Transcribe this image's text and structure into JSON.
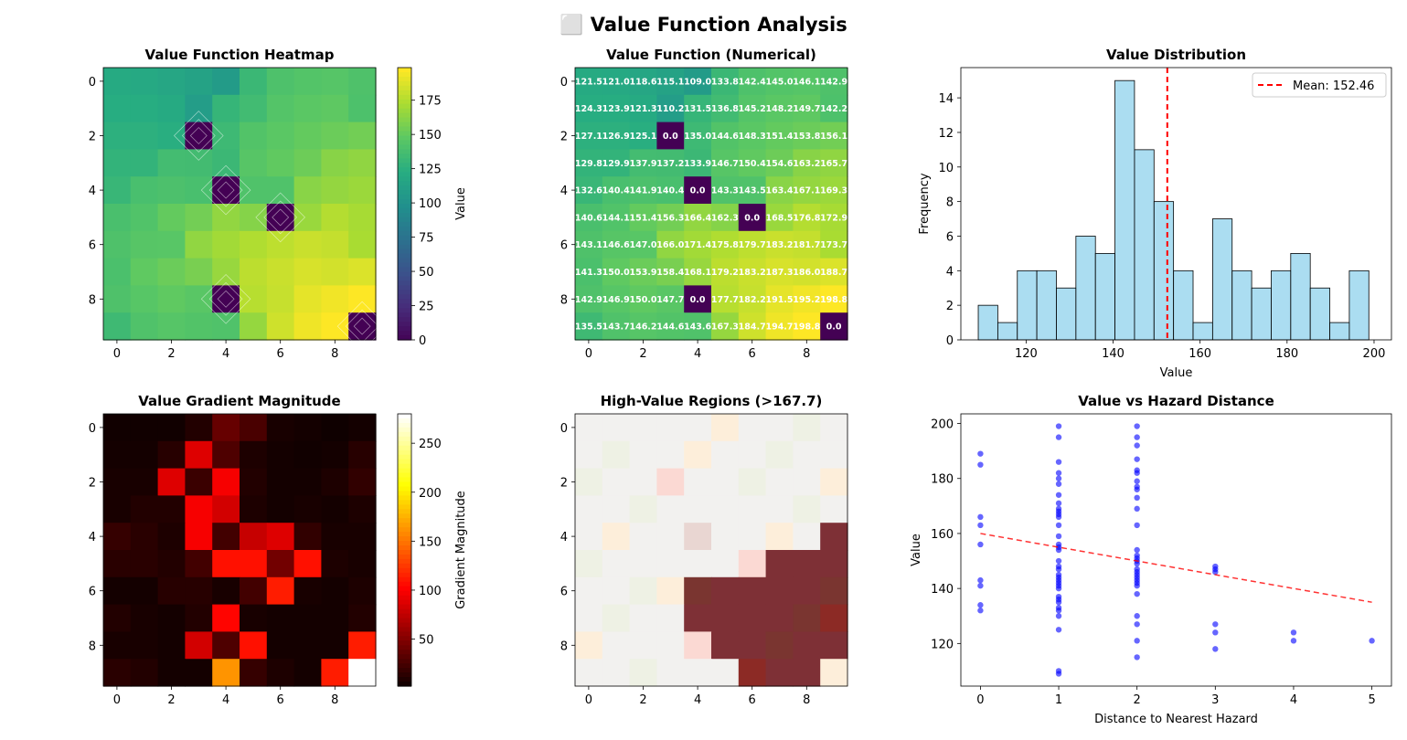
{
  "figure": {
    "suptitle": "⬜ Value Function Analysis"
  },
  "chart_data": [
    {
      "type": "heatmap",
      "title": "Value Function Heatmap",
      "colormap": "viridis",
      "x_ticks": [
        "0",
        "2",
        "4",
        "6",
        "8"
      ],
      "y_ticks": [
        "0",
        "2",
        "4",
        "6",
        "8"
      ],
      "colorbar": {
        "label": "Value",
        "ticks": [
          "0",
          "25",
          "50",
          "75",
          "100",
          "125",
          "150",
          "175"
        ],
        "range": [
          0,
          198.8
        ]
      },
      "values": [
        [
          121.5,
          121.0,
          118.6,
          115.1,
          109.0,
          133.8,
          142.4,
          145.0,
          146.1,
          142.9
        ],
        [
          124.3,
          123.9,
          121.3,
          110.2,
          131.5,
          136.8,
          145.2,
          148.2,
          149.7,
          142.2
        ],
        [
          127.1,
          126.9,
          125.1,
          0.0,
          135.0,
          144.6,
          148.3,
          151.4,
          153.8,
          156.1
        ],
        [
          129.8,
          129.9,
          137.9,
          137.2,
          133.9,
          146.7,
          150.4,
          154.6,
          163.2,
          165.7
        ],
        [
          132.6,
          140.4,
          141.9,
          140.4,
          0.0,
          143.3,
          143.5,
          163.4,
          167.1,
          169.3
        ],
        [
          140.6,
          144.1,
          151.4,
          156.3,
          166.4,
          162.3,
          0.0,
          168.5,
          176.8,
          172.9
        ],
        [
          143.1,
          146.6,
          147.0,
          166.0,
          171.4,
          175.8,
          179.7,
          183.2,
          181.7,
          173.7
        ],
        [
          141.3,
          150.0,
          153.9,
          158.4,
          168.1,
          179.2,
          183.2,
          187.3,
          186.0,
          188.7
        ],
        [
          142.9,
          146.9,
          150.0,
          147.7,
          0.0,
          177.7,
          182.2,
          191.5,
          195.2,
          198.8
        ],
        [
          135.5,
          143.7,
          146.2,
          144.6,
          143.6,
          167.3,
          184.7,
          194.7,
          198.8,
          0.0
        ]
      ]
    },
    {
      "type": "heatmap",
      "title": "Value Function (Numerical)",
      "colormap": "viridis",
      "x_ticks": [
        "0",
        "2",
        "4",
        "6",
        "8"
      ],
      "y_ticks": [
        "0",
        "2",
        "4",
        "6",
        "8"
      ],
      "cell_labels": [
        [
          "121.5",
          "121.0",
          "118.6",
          "115.1",
          "109.0",
          "133.8",
          "142.4",
          "145.0",
          "146.1",
          "142.9"
        ],
        [
          "124.3",
          "123.9",
          "121.3",
          "110.2",
          "131.5",
          "136.8",
          "145.2",
          "148.2",
          "149.7",
          "142.2"
        ],
        [
          "127.1",
          "126.9",
          "125.1",
          "0.0",
          "135.0",
          "144.6",
          "148.3",
          "151.4",
          "153.8",
          "156.1"
        ],
        [
          "129.8",
          "129.9",
          "137.9",
          "137.2",
          "133.9",
          "146.7",
          "150.4",
          "154.6",
          "163.2",
          "165.7"
        ],
        [
          "132.6",
          "140.4",
          "141.9",
          "140.4",
          "0.0",
          "143.3",
          "143.5",
          "163.4",
          "167.1",
          "169.3"
        ],
        [
          "140.6",
          "144.1",
          "151.4",
          "156.3",
          "166.4",
          "162.3",
          "0.0",
          "168.5",
          "176.8",
          "172.9"
        ],
        [
          "143.1",
          "146.6",
          "147.0",
          "166.0",
          "171.4",
          "175.8",
          "179.7",
          "183.2",
          "181.7",
          "173.7"
        ],
        [
          "141.3",
          "150.0",
          "153.9",
          "158.4",
          "168.1",
          "179.2",
          "183.2",
          "187.3",
          "186.0",
          "188.7"
        ],
        [
          "142.9",
          "146.9",
          "150.0",
          "147.7",
          "0.0",
          "177.7",
          "182.2",
          "191.5",
          "195.2",
          "198.8"
        ],
        [
          "135.5",
          "143.7",
          "146.2",
          "144.6",
          "143.6",
          "167.3",
          "184.7",
          "194.7",
          "198.8",
          "0.0"
        ]
      ]
    },
    {
      "type": "bar",
      "subtype": "histogram",
      "title": "Value Distribution",
      "xlabel": "Value",
      "ylabel": "Frequency",
      "xlim": [
        105,
        204
      ],
      "ylim": [
        0,
        15.75
      ],
      "x_ticks": [
        "120",
        "140",
        "160",
        "180",
        "200"
      ],
      "y_ticks": [
        "0",
        "2",
        "4",
        "6",
        "8",
        "10",
        "12",
        "14"
      ],
      "bin_start": 109.0,
      "bin_width": 4.49,
      "counts": [
        2,
        1,
        4,
        4,
        3,
        6,
        5,
        15,
        11,
        8,
        4,
        1,
        7,
        4,
        3,
        4,
        5,
        3,
        1,
        4
      ],
      "bar_color": "#87CEEB",
      "mean": 152.46,
      "legend": {
        "label": "Mean: 152.46",
        "placement": "upper right"
      }
    },
    {
      "type": "heatmap",
      "title": "Value Gradient Magnitude",
      "colormap": "hot",
      "x_ticks": [
        "0",
        "2",
        "4",
        "6",
        "8"
      ],
      "y_ticks": [
        "0",
        "2",
        "4",
        "6",
        "8"
      ],
      "colorbar": {
        "label": "Gradient Magnitude",
        "ticks": [
          "50",
          "100",
          "150",
          "200",
          "250"
        ],
        "range": [
          2,
          280
        ]
      },
      "values": [
        [
          5,
          5,
          5,
          12,
          40,
          28,
          8,
          6,
          4,
          6
        ],
        [
          6,
          6,
          14,
          90,
          30,
          10,
          6,
          5,
          6,
          14
        ],
        [
          8,
          8,
          90,
          22,
          100,
          12,
          6,
          6,
          10,
          18
        ],
        [
          8,
          12,
          12,
          100,
          85,
          10,
          6,
          8,
          6,
          10
        ],
        [
          20,
          15,
          10,
          100,
          25,
          80,
          90,
          18,
          8,
          8
        ],
        [
          15,
          15,
          12,
          25,
          110,
          110,
          45,
          110,
          10,
          8
        ],
        [
          6,
          6,
          14,
          14,
          8,
          25,
          115,
          8,
          6,
          10
        ],
        [
          12,
          8,
          6,
          12,
          105,
          8,
          6,
          6,
          6,
          12
        ],
        [
          8,
          8,
          6,
          85,
          30,
          110,
          6,
          6,
          6,
          115
        ],
        [
          15,
          12,
          6,
          6,
          165,
          20,
          10,
          6,
          115,
          280
        ]
      ]
    },
    {
      "type": "heatmap",
      "title": "High-Value Regions (>167.7)",
      "colormap": "masked",
      "x_ticks": [
        "0",
        "2",
        "4",
        "6",
        "8"
      ],
      "y_ticks": [
        "0",
        "2",
        "4",
        "6",
        "8"
      ],
      "base_color": "#f2f1ef",
      "highlight_color": "#7e3036",
      "tints": [
        [
          0,
          0,
          0,
          0,
          0,
          2,
          0,
          0,
          1,
          0
        ],
        [
          0,
          1,
          0,
          0,
          2,
          0,
          0,
          1,
          0,
          0
        ],
        [
          1,
          0,
          0,
          3,
          0,
          0,
          1,
          0,
          0,
          2
        ],
        [
          0,
          0,
          1,
          0,
          0,
          0,
          0,
          0,
          1,
          0
        ],
        [
          0,
          2,
          0,
          0,
          4,
          0,
          0,
          2,
          0,
          9
        ],
        [
          1,
          0,
          0,
          0,
          0,
          0,
          3,
          9,
          9,
          9
        ],
        [
          0,
          0,
          1,
          2,
          9,
          9,
          9,
          9,
          9,
          9
        ],
        [
          0,
          1,
          0,
          0,
          9,
          9,
          9,
          9,
          9,
          9
        ],
        [
          2,
          0,
          0,
          0,
          3,
          9,
          9,
          9,
          9,
          9
        ],
        [
          0,
          0,
          1,
          0,
          0,
          0,
          9,
          9,
          9,
          2
        ]
      ]
    },
    {
      "type": "scatter",
      "title": "Value vs Hazard Distance",
      "xlabel": "Distance to Nearest Hazard",
      "ylabel": "Value",
      "xlim": [
        -0.25,
        5.25
      ],
      "ylim": [
        104.5,
        203.5
      ],
      "x_ticks": [
        "0",
        "1",
        "2",
        "3",
        "4",
        "5"
      ],
      "y_ticks": [
        "120",
        "140",
        "160",
        "180",
        "200"
      ],
      "point_color": "#0000ff",
      "points": [
        [
          0,
          189
        ],
        [
          0,
          185
        ],
        [
          0,
          166
        ],
        [
          0,
          163
        ],
        [
          0,
          156
        ],
        [
          0,
          143
        ],
        [
          0,
          141
        ],
        [
          0,
          134
        ],
        [
          0,
          132
        ],
        [
          1,
          199
        ],
        [
          1,
          195
        ],
        [
          1,
          186
        ],
        [
          1,
          182
        ],
        [
          1,
          180
        ],
        [
          1,
          178
        ],
        [
          1,
          174
        ],
        [
          1,
          171
        ],
        [
          1,
          169
        ],
        [
          1,
          168
        ],
        [
          1,
          167
        ],
        [
          1,
          166
        ],
        [
          1,
          163
        ],
        [
          1,
          159
        ],
        [
          1,
          156
        ],
        [
          1,
          155
        ],
        [
          1,
          154
        ],
        [
          1,
          150
        ],
        [
          1,
          148
        ],
        [
          1,
          147
        ],
        [
          1,
          145
        ],
        [
          1,
          144
        ],
        [
          1,
          143
        ],
        [
          1,
          142
        ],
        [
          1,
          141
        ],
        [
          1,
          140
        ],
        [
          1,
          137
        ],
        [
          1,
          136
        ],
        [
          1,
          135
        ],
        [
          1,
          133
        ],
        [
          1,
          132
        ],
        [
          1,
          130
        ],
        [
          1,
          125
        ],
        [
          1,
          110
        ],
        [
          1,
          109
        ],
        [
          2,
          199
        ],
        [
          2,
          195
        ],
        [
          2,
          192
        ],
        [
          2,
          187
        ],
        [
          2,
          183
        ],
        [
          2,
          182
        ],
        [
          2,
          179
        ],
        [
          2,
          177
        ],
        [
          2,
          176
        ],
        [
          2,
          173
        ],
        [
          2,
          169
        ],
        [
          2,
          163
        ],
        [
          2,
          154
        ],
        [
          2,
          152
        ],
        [
          2,
          151
        ],
        [
          2,
          150
        ],
        [
          2,
          149
        ],
        [
          2,
          147
        ],
        [
          2,
          146
        ],
        [
          2,
          145
        ],
        [
          2,
          144
        ],
        [
          2,
          143
        ],
        [
          2,
          142
        ],
        [
          2,
          141
        ],
        [
          2,
          138
        ],
        [
          2,
          130
        ],
        [
          2,
          127
        ],
        [
          2,
          121
        ],
        [
          2,
          115
        ],
        [
          3,
          148
        ],
        [
          3,
          147
        ],
        [
          3,
          146
        ],
        [
          3,
          127
        ],
        [
          3,
          124
        ],
        [
          3,
          118
        ],
        [
          4,
          124
        ],
        [
          4,
          121
        ],
        [
          5,
          121
        ]
      ],
      "trend": {
        "x": [
          0,
          5
        ],
        "y": [
          160,
          135
        ],
        "color": "#ff0000"
      }
    }
  ]
}
